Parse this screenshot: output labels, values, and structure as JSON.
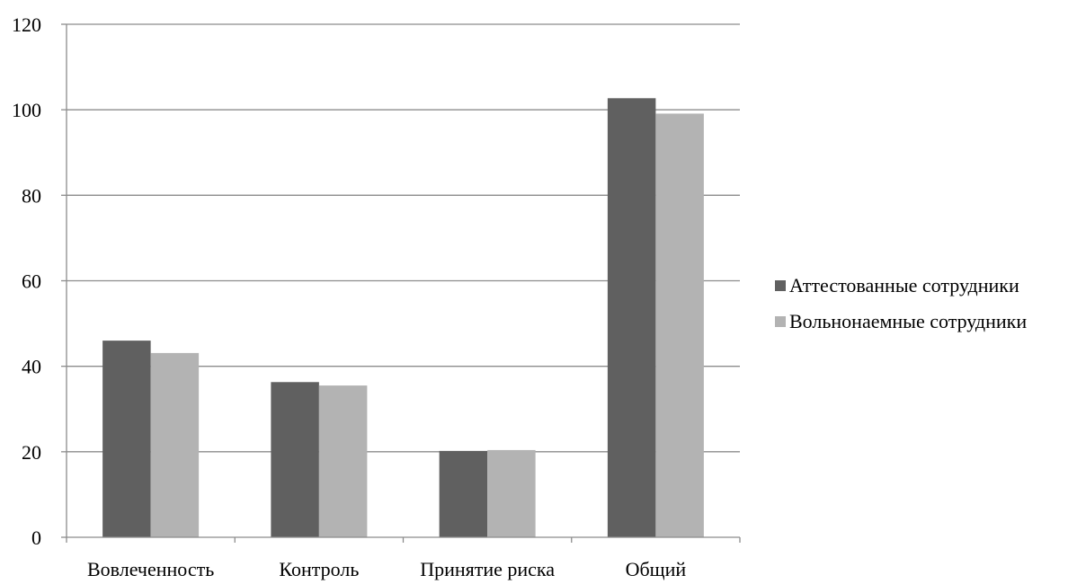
{
  "chart_data": {
    "type": "bar",
    "categories": [
      "Вовлеченность",
      "Контроль",
      "Принятие риска",
      "Общий"
    ],
    "series": [
      {
        "name": "Аттестованные сотрудники",
        "color": "#606060",
        "values": [
          46,
          36.3,
          20.2,
          102.7
        ]
      },
      {
        "name": "Вольнонаемные сотрудники",
        "color": "#b3b3b3",
        "values": [
          43.1,
          35.5,
          20.4,
          99.1
        ]
      }
    ],
    "ylim": [
      0,
      120
    ],
    "yticks": [
      0,
      20,
      40,
      60,
      80,
      100,
      120
    ],
    "grid": true,
    "legend_position": "right"
  }
}
